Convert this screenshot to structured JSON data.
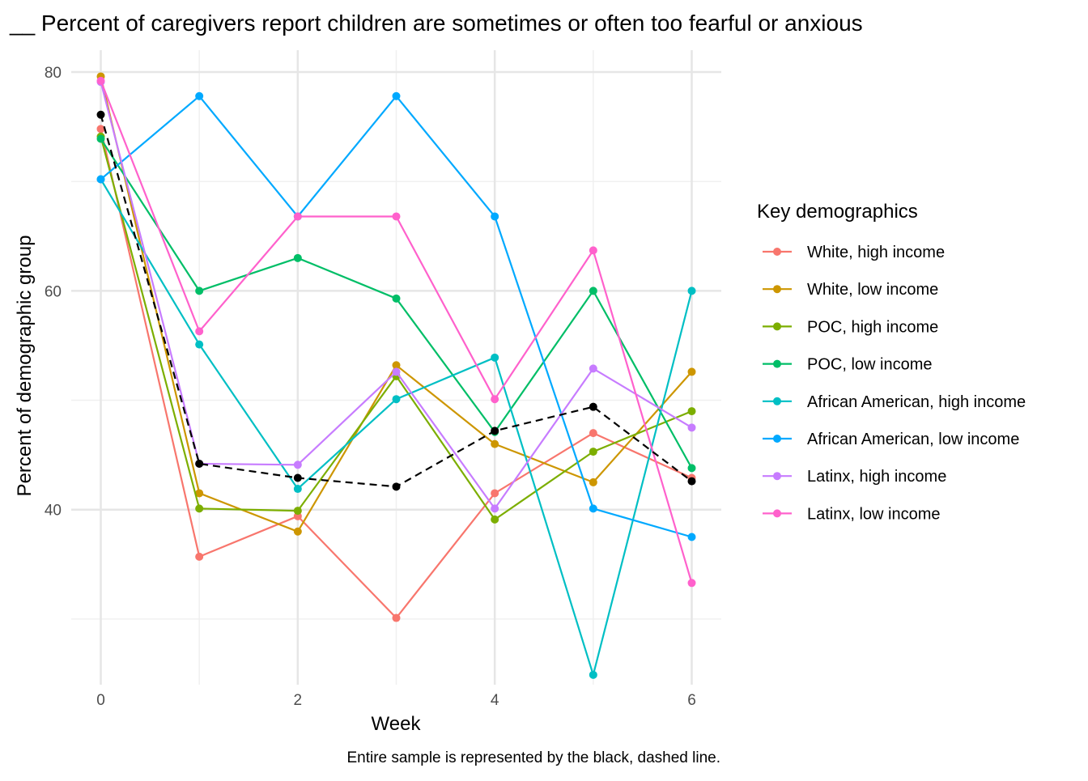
{
  "chart_data": {
    "type": "line",
    "title": "__ Percent of caregivers report children are sometimes or often too fearful or anxious",
    "xlabel": "Week",
    "ylabel": "Percent of demographic group",
    "caption": "Entire sample is represented by the black, dashed line.",
    "x": [
      0,
      1,
      2,
      3,
      4,
      5,
      6
    ],
    "xlim": [
      -0.3,
      6.3
    ],
    "ylim": [
      24,
      82
    ],
    "x_ticks": [
      0,
      2,
      4,
      6
    ],
    "y_ticks": [
      40,
      60,
      80
    ],
    "grid": true,
    "legend": {
      "title": "Key demographics",
      "placement": "right"
    },
    "series": [
      {
        "name": "White, high income",
        "color": "#F8766D",
        "values": [
          74.8,
          35.7,
          39.4,
          30.1,
          41.5,
          47.0,
          42.9
        ]
      },
      {
        "name": "White, low income",
        "color": "#CD9600",
        "values": [
          79.6,
          41.5,
          38.0,
          53.2,
          46.0,
          42.5,
          52.6
        ]
      },
      {
        "name": "POC, high income",
        "color": "#7CAE00",
        "values": [
          74.1,
          40.1,
          39.9,
          52.2,
          39.1,
          45.3,
          49.0
        ]
      },
      {
        "name": "POC, low income",
        "color": "#00BE67",
        "values": [
          73.9,
          60.0,
          63.0,
          59.3,
          47.1,
          60.0,
          43.8
        ]
      },
      {
        "name": "African American, high income",
        "color": "#00BFC4",
        "values": [
          70.2,
          55.1,
          41.9,
          50.1,
          53.9,
          24.9,
          60.0
        ]
      },
      {
        "name": "African American, low income",
        "color": "#00A9FF",
        "values": [
          70.2,
          77.8,
          66.8,
          77.8,
          66.8,
          40.1,
          37.5
        ]
      },
      {
        "name": "Latinx, high income",
        "color": "#C77CFF",
        "values": [
          79.1,
          44.2,
          44.1,
          52.6,
          40.1,
          52.9,
          47.5
        ]
      },
      {
        "name": "Latinx, low income",
        "color": "#FF61CC",
        "values": [
          79.2,
          56.3,
          66.8,
          66.8,
          50.1,
          63.7,
          33.3
        ]
      }
    ],
    "overall": {
      "color": "#000000",
      "values": [
        76.1,
        44.2,
        42.9,
        42.1,
        47.2,
        49.4,
        42.6
      ]
    }
  }
}
